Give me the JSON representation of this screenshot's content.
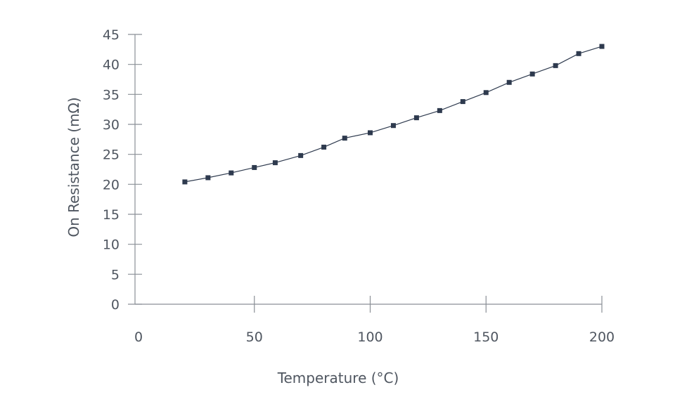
{
  "chart_data": {
    "type": "line",
    "title": "",
    "xlabel": "Temperature (°C)",
    "ylabel": "On Resistance (mΩ)",
    "xlim": [
      0,
      200
    ],
    "ylim": [
      0,
      45
    ],
    "xticks": [
      0,
      50,
      100,
      150,
      200
    ],
    "yticks": [
      0,
      5,
      10,
      15,
      20,
      25,
      30,
      35,
      40,
      45
    ],
    "grid": false,
    "marker": "square",
    "colors": {
      "series": "#2e3a4e",
      "axis": "#8a8f96",
      "text": "#4f5660"
    },
    "series": [
      {
        "x": [
          20,
          30,
          40,
          50,
          59,
          70,
          80,
          89,
          100,
          110,
          120,
          130,
          140,
          150,
          160,
          170,
          180,
          190,
          200
        ],
        "y": [
          20.4,
          21.1,
          21.9,
          22.8,
          23.6,
          24.8,
          26.2,
          27.7,
          28.6,
          29.8,
          31.1,
          32.3,
          33.8,
          35.3,
          37.0,
          38.4,
          39.8,
          41.8,
          43.0
        ]
      }
    ]
  }
}
